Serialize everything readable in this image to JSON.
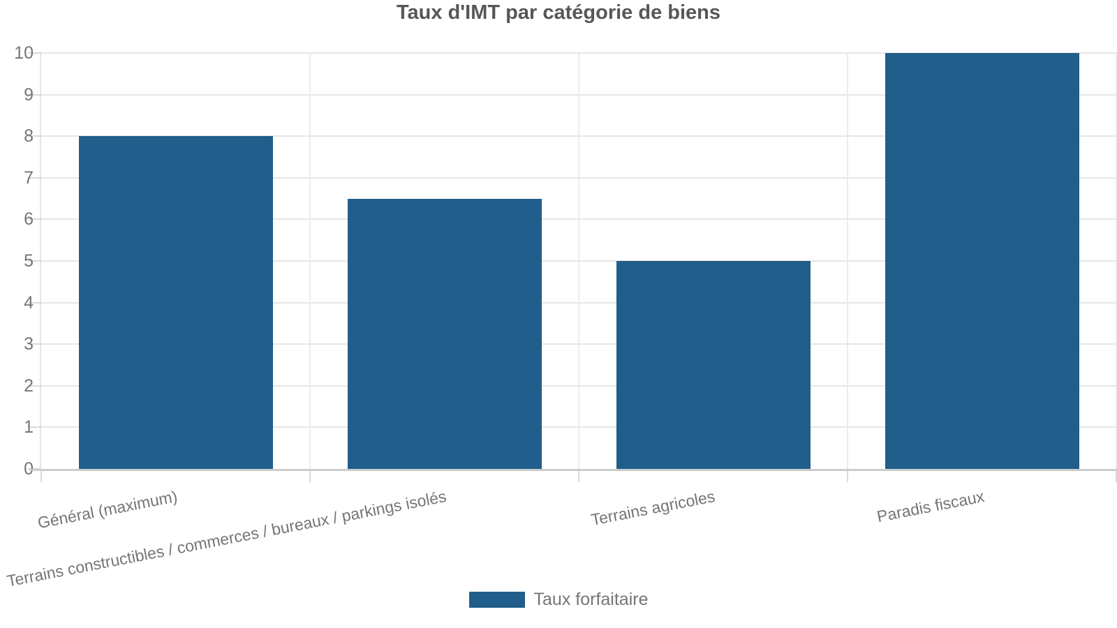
{
  "chart_data": {
    "type": "bar",
    "title": "Taux d'IMT par catégorie de biens",
    "categories": [
      "Général (maximum)",
      "Terrains constructibles / commerces / bureaux / parkings isolés",
      "Terrains agricoles",
      "Paradis fiscaux"
    ],
    "series": [
      {
        "name": "Taux forfaitaire",
        "values": [
          8,
          6.5,
          5,
          10
        ]
      }
    ],
    "xlabel": "",
    "ylabel": "",
    "ylim": [
      0,
      10
    ],
    "yticks": [
      "0",
      "1",
      "2",
      "3",
      "4",
      "5",
      "6",
      "7",
      "8",
      "9",
      "10"
    ],
    "grid": true,
    "legend_position": "bottom",
    "x_label_rotation_deg": -11,
    "colors": {
      "bar": "#215E8B",
      "title_text": "#555759",
      "axis_text": "#757575",
      "gridline": "#E6E6E6",
      "axis_line": "#CCCCCC"
    }
  }
}
